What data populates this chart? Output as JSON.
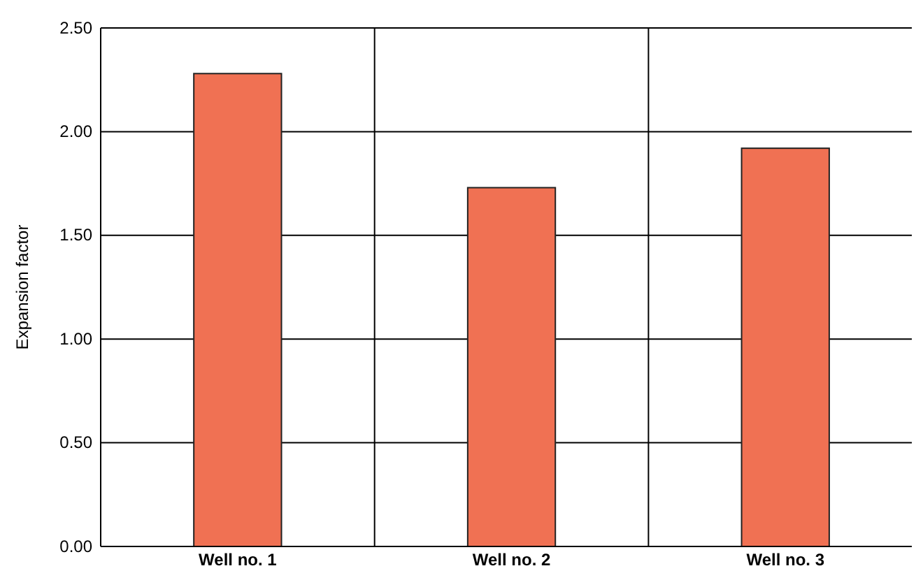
{
  "chart_data": {
    "type": "bar",
    "ylabel": "Expansion factor",
    "categories": [
      "Well no. 1",
      "Well no. 2",
      "Well no. 3"
    ],
    "values": [
      2.28,
      1.73,
      1.92
    ],
    "color": "#f07153",
    "ylim": [
      0,
      2.5
    ],
    "yticks": [
      {
        "value": 0,
        "label": "0.00"
      },
      {
        "value": 0.5,
        "label": "0.50"
      },
      {
        "value": 1,
        "label": "1.00"
      },
      {
        "value": 1.5,
        "label": "1.50"
      },
      {
        "value": 2,
        "label": "2.00"
      },
      {
        "value": 2.5,
        "label": "2.50"
      }
    ],
    "grid": true
  }
}
